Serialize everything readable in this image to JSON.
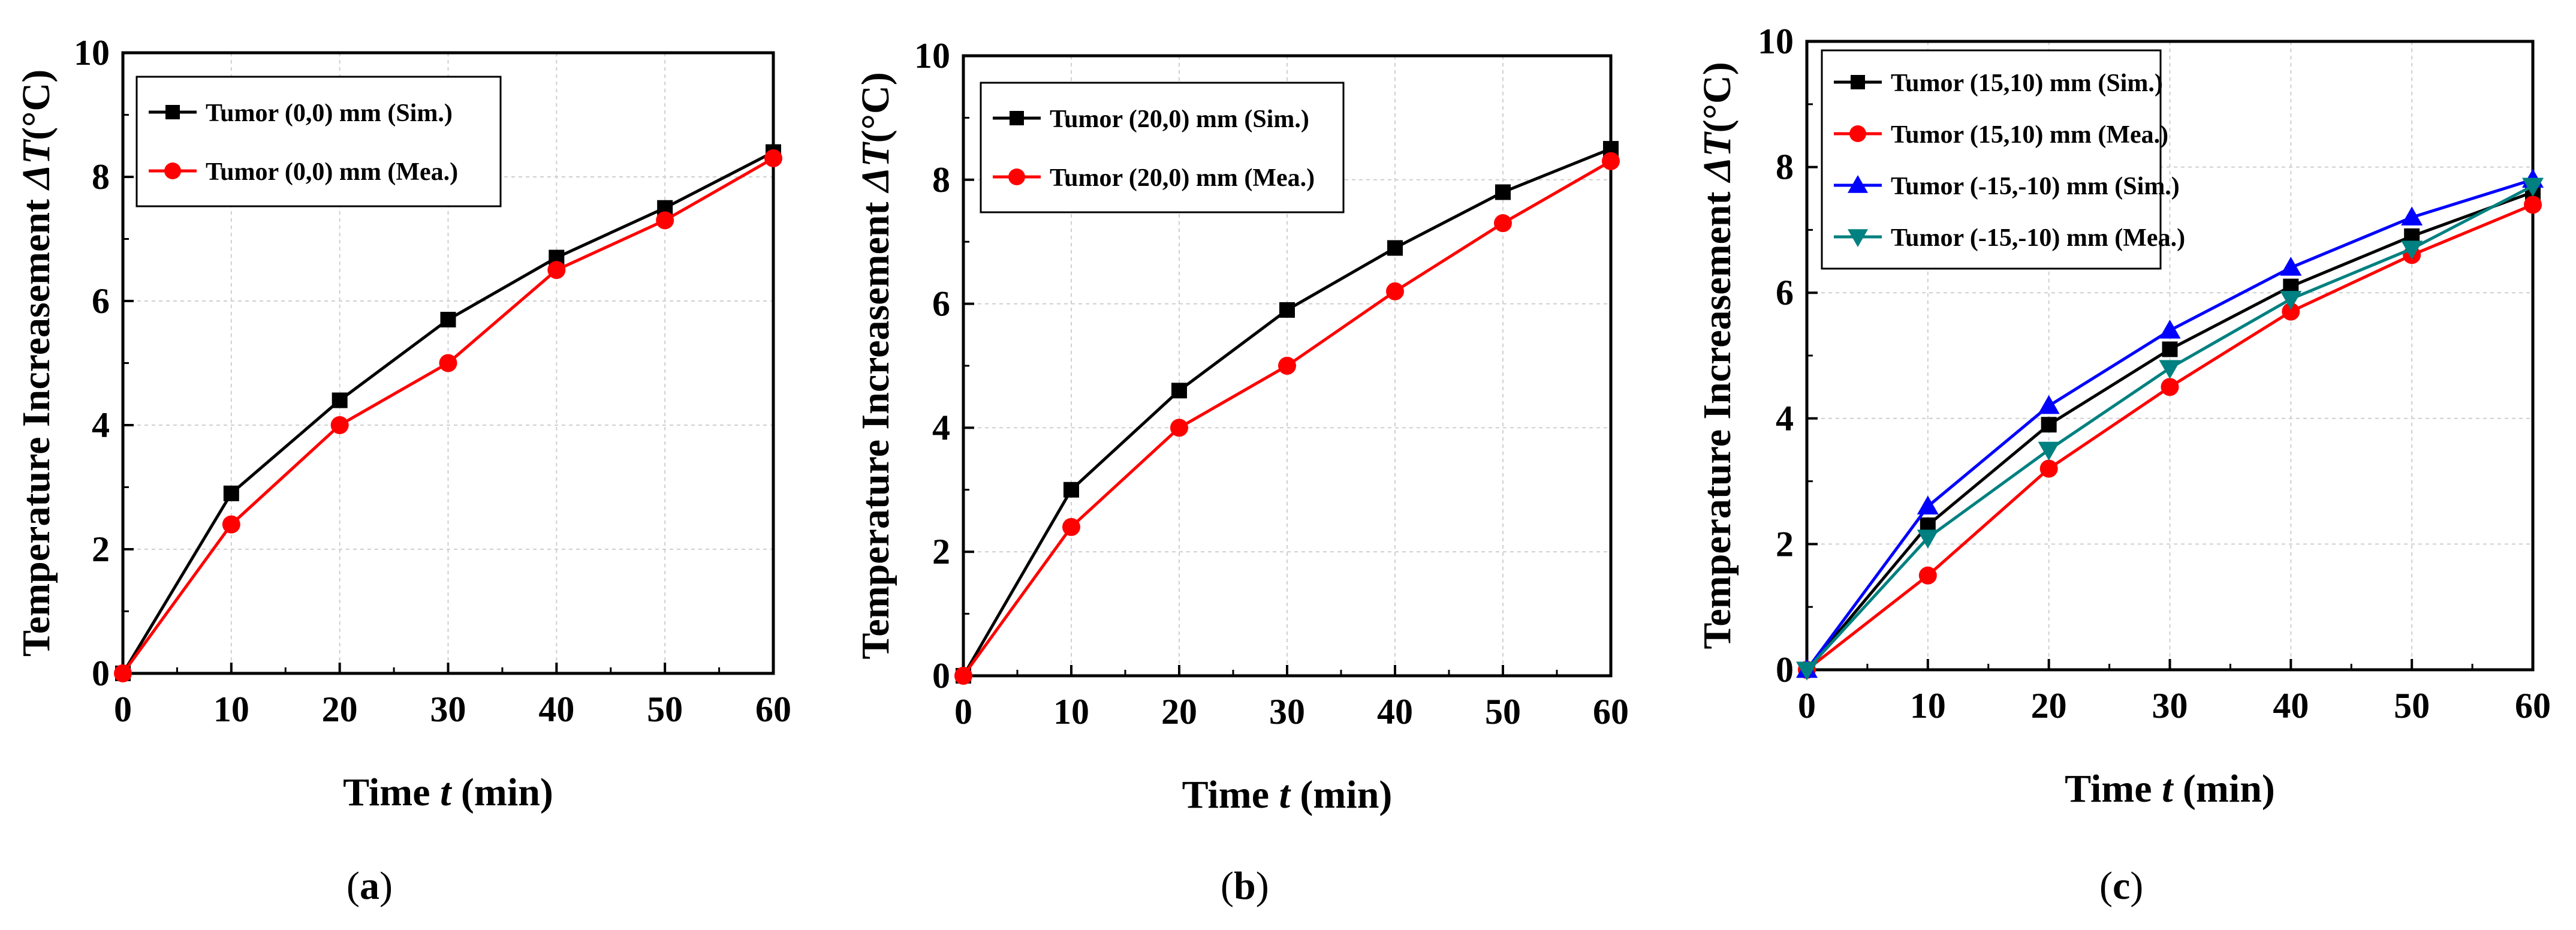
{
  "chart_data": [
    {
      "type": "line",
      "panel": "a",
      "xlabel_prefix": "Time ",
      "xlabel_var": "t",
      "xlabel_suffix": " (min)",
      "ylabel_prefix": "Temperature Increasement ",
      "ylabel_var": "ΔT",
      "ylabel_suffix": "(°C)",
      "xlim": [
        0,
        60
      ],
      "ylim": [
        0,
        10
      ],
      "xticks": [
        0,
        10,
        20,
        30,
        40,
        50,
        60
      ],
      "yticks": [
        0,
        2,
        4,
        6,
        8,
        10
      ],
      "grid": true,
      "legend_position": "top-left",
      "x": [
        0,
        10,
        20,
        30,
        40,
        50,
        60
      ],
      "series": [
        {
          "name": "Tumor (0,0) mm (Sim.)",
          "color": "#000000",
          "marker": "square",
          "values": [
            0,
            2.9,
            4.4,
            5.7,
            6.7,
            7.5,
            8.4
          ]
        },
        {
          "name": "Tumor (0,0) mm (Mea.)",
          "color": "#ff0000",
          "marker": "circle",
          "values": [
            0,
            2.4,
            4.0,
            5.0,
            6.5,
            7.3,
            8.3
          ]
        }
      ]
    },
    {
      "type": "line",
      "panel": "b",
      "xlabel_prefix": "Time ",
      "xlabel_var": "t",
      "xlabel_suffix": " (min)",
      "ylabel_prefix": "Temperature Increasement ",
      "ylabel_var": "ΔT",
      "ylabel_suffix": "(°C)",
      "xlim": [
        0,
        60
      ],
      "ylim": [
        0,
        10
      ],
      "xticks": [
        0,
        10,
        20,
        30,
        40,
        50,
        60
      ],
      "yticks": [
        0,
        2,
        4,
        6,
        8,
        10
      ],
      "grid": true,
      "legend_position": "top-left",
      "x": [
        0,
        10,
        20,
        30,
        40,
        50,
        60
      ],
      "series": [
        {
          "name": "Tumor (20,0) mm (Sim.)",
          "color": "#000000",
          "marker": "square",
          "values": [
            0,
            3.0,
            4.6,
            5.9,
            6.9,
            7.8,
            8.5
          ]
        },
        {
          "name": "Tumor (20,0) mm (Mea.)",
          "color": "#ff0000",
          "marker": "circle",
          "values": [
            0,
            2.4,
            4.0,
            5.0,
            6.2,
            7.3,
            8.3
          ]
        }
      ]
    },
    {
      "type": "line",
      "panel": "c",
      "xlabel_prefix": "Time ",
      "xlabel_var": "t",
      "xlabel_suffix": " (min)",
      "ylabel_prefix": "Temperature Increasement ",
      "ylabel_var": "ΔT",
      "ylabel_suffix": "(°C)",
      "xlim": [
        0,
        60
      ],
      "ylim": [
        0,
        10
      ],
      "xticks": [
        0,
        10,
        20,
        30,
        40,
        50,
        60
      ],
      "yticks": [
        0,
        2,
        4,
        6,
        8,
        10
      ],
      "grid": true,
      "legend_position": "top-left",
      "x": [
        0,
        10,
        20,
        30,
        40,
        50,
        60
      ],
      "series": [
        {
          "name": "Tumor (15,10) mm (Sim.)",
          "color": "#000000",
          "marker": "square",
          "values": [
            0,
            2.3,
            3.9,
            5.1,
            6.1,
            6.9,
            7.6
          ]
        },
        {
          "name": "Tumor (15,10) mm (Mea.)",
          "color": "#ff0000",
          "marker": "circle",
          "values": [
            0,
            1.5,
            3.2,
            4.5,
            5.7,
            6.6,
            7.4
          ]
        },
        {
          "name": "Tumor (-15,-10) mm (Sim.)",
          "color": "#0000ff",
          "marker": "triangle-up",
          "values": [
            0,
            2.6,
            4.2,
            5.4,
            6.4,
            7.2,
            7.8
          ]
        },
        {
          "name": "Tumor (-15,-10) mm (Mea.)",
          "color": "#008080",
          "marker": "triangle-down",
          "values": [
            0,
            2.1,
            3.5,
            4.8,
            5.9,
            6.7,
            7.7
          ]
        }
      ]
    }
  ],
  "captions": [
    {
      "open": "(",
      "label": "a",
      "close": ")"
    },
    {
      "open": "(",
      "label": "b",
      "close": ")"
    },
    {
      "open": "(",
      "label": "c",
      "close": ")"
    }
  ]
}
